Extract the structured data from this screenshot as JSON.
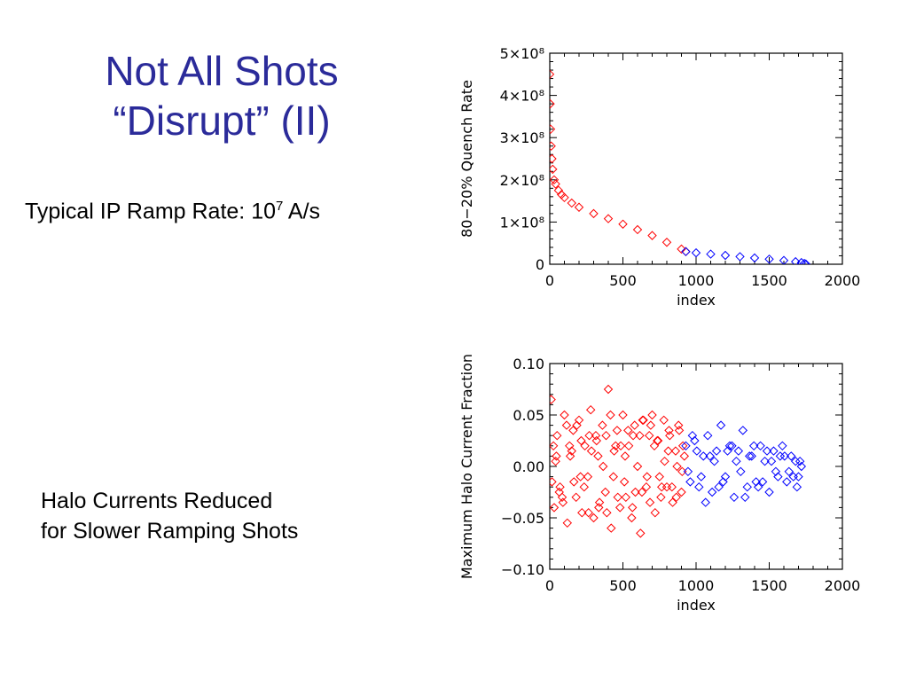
{
  "slide": {
    "title_line1": "Not All Shots",
    "title_line2": "“Disrupt” (II)",
    "ramp_note_prefix": "Typical IP Ramp Rate: 10",
    "ramp_note_exponent": "7",
    "ramp_note_suffix": " A/s",
    "halo_note_line1": "Halo Currents Reduced",
    "halo_note_line2": "for Slower Ramping Shots"
  },
  "colors": {
    "title": "#2b2b9a",
    "fast_shots": "#ff0000",
    "slow_shots": "#0000ff"
  },
  "chart_data": [
    {
      "type": "scatter",
      "xlabel": "index",
      "ylabel": "80−20% Quench Rate",
      "xlim": [
        0,
        2000
      ],
      "ylim": [
        0,
        500000000
      ],
      "x_ticks": [
        0,
        500,
        1000,
        1500,
        2000
      ],
      "x_tick_labels": [
        "0",
        "500",
        "1000",
        "1500",
        "2000"
      ],
      "y_ticks": [
        0,
        100000000,
        200000000,
        300000000,
        400000000,
        500000000
      ],
      "y_tick_labels": [
        "0",
        "1×10⁸",
        "2×10⁸",
        "3×10⁸",
        "4×10⁸",
        "5×10⁸"
      ],
      "marker": "diamond",
      "series": [
        {
          "color": "#ff0000",
          "x": [
            0,
            3,
            6,
            10,
            15,
            20,
            30,
            40,
            60,
            80,
            100,
            150,
            200,
            300,
            400,
            500,
            600,
            700,
            800,
            900,
            930
          ],
          "y": [
            450000000,
            380000000,
            320000000,
            280000000,
            250000000,
            225000000,
            200000000,
            190000000,
            175000000,
            165000000,
            158000000,
            145000000,
            135000000,
            120000000,
            108000000,
            95000000,
            82000000,
            68000000,
            52000000,
            36000000,
            30000000
          ]
        },
        {
          "color": "#0000ff",
          "x": [
            930,
            1000,
            1100,
            1200,
            1300,
            1400,
            1500,
            1600,
            1680,
            1720,
            1740,
            1750
          ],
          "y": [
            30000000,
            27000000,
            24000000,
            21000000,
            18000000,
            15000000,
            12000000,
            9000000,
            6000000,
            4000000,
            2000000,
            500000
          ]
        }
      ]
    },
    {
      "type": "scatter",
      "xlabel": "index",
      "ylabel": "Maximum Halo Current Fraction",
      "xlim": [
        0,
        2000
      ],
      "ylim": [
        -0.1,
        0.1
      ],
      "x_ticks": [
        0,
        500,
        1000,
        1500,
        2000
      ],
      "x_tick_labels": [
        "0",
        "500",
        "1000",
        "1500",
        "2000"
      ],
      "y_ticks": [
        -0.1,
        -0.05,
        0,
        0.05,
        0.1
      ],
      "y_tick_labels": [
        "−0.10",
        "−0.05",
        "0.00",
        "0.05",
        "0.10"
      ],
      "marker": "diamond",
      "series": [
        {
          "color": "#ff0000",
          "x": [
            10,
            30,
            50,
            70,
            100,
            120,
            140,
            160,
            180,
            200,
            220,
            240,
            260,
            280,
            300,
            320,
            340,
            360,
            380,
            400,
            420,
            440,
            460,
            480,
            500,
            520,
            540,
            560,
            580,
            600,
            620,
            640,
            660,
            680,
            700,
            720,
            740,
            760,
            780,
            800,
            820,
            840,
            860,
            880,
            900,
            920,
            15,
            45,
            85,
            135,
            185,
            235,
            285,
            335,
            385,
            435,
            485,
            535,
            585,
            635,
            685,
            735,
            785,
            835,
            885,
            25,
            65,
            115,
            165,
            215,
            265,
            315,
            365,
            415,
            465,
            515,
            565,
            615,
            665,
            715,
            765,
            815,
            865,
            905,
            40,
            90,
            150,
            210,
            270,
            330,
            390,
            450,
            510,
            570,
            630,
            690,
            750,
            810,
            870,
            910
          ],
          "y": [
            0.065,
            -0.04,
            0.03,
            -0.02,
            0.05,
            -0.055,
            0.01,
            0.035,
            -0.03,
            0.045,
            -0.045,
            0.02,
            -0.01,
            0.055,
            -0.05,
            0.025,
            -0.035,
            0.04,
            -0.025,
            0.075,
            -0.06,
            0.015,
            0.035,
            -0.04,
            0.05,
            -0.03,
            0.02,
            -0.05,
            0.04,
            0.0,
            -0.065,
            0.045,
            -0.02,
            0.03,
            0.05,
            -0.045,
            0.025,
            -0.03,
            0.045,
            -0.02,
            0.03,
            -0.035,
            0.015,
            0.04,
            -0.025,
            0.01,
            -0.015,
            0.01,
            -0.03,
            0.02,
            0.04,
            -0.02,
            0.015,
            -0.04,
            0.03,
            -0.01,
            0.02,
            0.035,
            -0.025,
            0.045,
            -0.035,
            0.025,
            0.005,
            -0.02,
            0.035,
            0.02,
            -0.025,
            0.04,
            -0.015,
            0.025,
            -0.045,
            0.03,
            0.0,
            0.05,
            -0.03,
            0.01,
            -0.04,
            0.03,
            -0.01,
            0.02,
            -0.02,
            0.035,
            -0.03,
            -0.005,
            0.005,
            -0.035,
            0.015,
            -0.01,
            0.03,
            0.01,
            -0.045,
            0.02,
            -0.015,
            0.03,
            -0.025,
            0.04,
            -0.01,
            0.015,
            0.0,
            0.02
          ]
        },
        {
          "color": "#0000ff",
          "x": [
            930,
            960,
            990,
            1020,
            1050,
            1080,
            1110,
            1140,
            1170,
            1200,
            1230,
            1260,
            1290,
            1320,
            1350,
            1380,
            1410,
            1440,
            1470,
            1500,
            1530,
            1560,
            1590,
            1620,
            1650,
            1680,
            1700,
            1720,
            945,
            1005,
            1065,
            1125,
            1185,
            1245,
            1305,
            1365,
            1425,
            1485,
            1545,
            1605,
            1665,
            1710,
            975,
            1035,
            1095,
            1155,
            1215,
            1275,
            1335,
            1395,
            1455,
            1515,
            1575,
            1635,
            1690
          ],
          "y": [
            0.02,
            -0.015,
            0.025,
            -0.02,
            0.01,
            0.03,
            -0.025,
            0.015,
            0.04,
            -0.01,
            0.02,
            -0.03,
            0.015,
            0.035,
            -0.02,
            0.01,
            -0.015,
            0.02,
            0.005,
            -0.025,
            0.015,
            -0.01,
            0.02,
            -0.015,
            0.01,
            0.005,
            -0.01,
            0.0,
            -0.005,
            0.015,
            -0.035,
            0.005,
            -0.015,
            0.02,
            -0.005,
            0.01,
            -0.02,
            0.015,
            -0.005,
            0.01,
            -0.01,
            0.005,
            0.03,
            -0.01,
            0.01,
            -0.02,
            0.015,
            0.005,
            -0.03,
            0.02,
            -0.015,
            0.005,
            0.01,
            -0.005,
            -0.02
          ]
        }
      ]
    }
  ]
}
